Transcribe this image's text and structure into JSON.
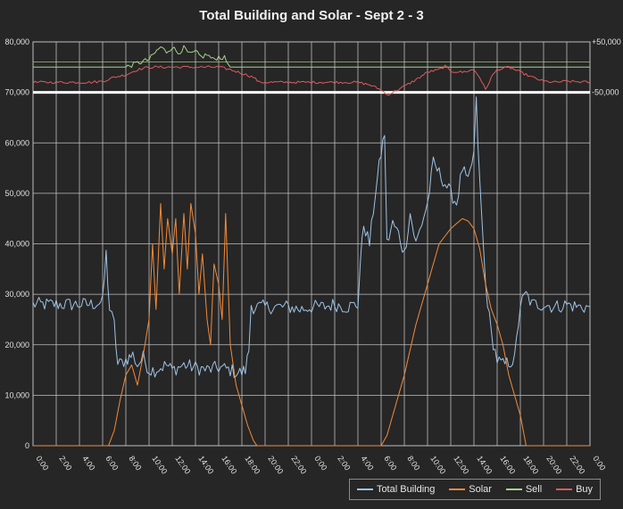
{
  "chart_data": {
    "type": "line",
    "title": "Total Building and Solar - Sept 2 - 3",
    "x_tick_labels": [
      "0:00",
      "2:00",
      "4:00",
      "6:00",
      "8:00",
      "10:00",
      "12:00",
      "14:00",
      "16:00",
      "18:00",
      "20:00",
      "22:00",
      "0:00",
      "2:00",
      "4:00",
      "6:00",
      "8:00",
      "10:00",
      "12:00",
      "14:00",
      "16:00",
      "18:00",
      "20:00",
      "22:00",
      "0:00"
    ],
    "x_range_hours": [
      0,
      48
    ],
    "y_left": {
      "range": [
        0,
        80000
      ],
      "ticks": [
        "0",
        "10,000",
        "20,000",
        "30,000",
        "40,000",
        "50,000",
        "60,000",
        "70,000",
        "80,000"
      ]
    },
    "y_right": {
      "range": [
        -50000,
        50000
      ],
      "ticks": [
        "-50,000",
        "+50,000"
      ],
      "inset_band_left_range": [
        70000,
        80000
      ]
    },
    "colors": {
      "building": "#9ec3e6",
      "solar": "#f28b3a",
      "sell": "#a5d28a",
      "buy": "#e05a5a",
      "zero_line": "#ffffff",
      "grid": "#bfbfbf"
    },
    "series": [
      {
        "name": "Total Building",
        "color": "#9ec3e6",
        "points": [
          [
            0,
            28000
          ],
          [
            1,
            28000
          ],
          [
            2,
            28000
          ],
          [
            3,
            28000
          ],
          [
            4,
            28000
          ],
          [
            5,
            28000
          ],
          [
            6,
            28500
          ],
          [
            6.3,
            38000
          ],
          [
            6.6,
            27000
          ],
          [
            7,
            24000
          ],
          [
            7.3,
            16000
          ],
          [
            8,
            17000
          ],
          [
            8.6,
            18000
          ],
          [
            9,
            16000
          ],
          [
            9.5,
            17500
          ],
          [
            10,
            15000
          ],
          [
            10.5,
            15000
          ],
          [
            11,
            15500
          ],
          [
            11.5,
            16000
          ],
          [
            12,
            15000
          ],
          [
            12.5,
            15500
          ],
          [
            13,
            16000
          ],
          [
            14,
            15500
          ],
          [
            15,
            15000
          ],
          [
            16,
            15500
          ],
          [
            17,
            15000
          ],
          [
            17.5,
            14500
          ],
          [
            18,
            14500
          ],
          [
            18.3,
            15000
          ],
          [
            18.6,
            19000
          ],
          [
            18.8,
            28000
          ],
          [
            19,
            27500
          ],
          [
            20,
            27500
          ],
          [
            21,
            27500
          ],
          [
            22,
            27500
          ],
          [
            23,
            27000
          ],
          [
            24,
            27500
          ],
          [
            25,
            27500
          ],
          [
            26,
            28000
          ],
          [
            27,
            27500
          ],
          [
            28,
            28000
          ],
          [
            28.2,
            36000
          ],
          [
            28.5,
            44000
          ],
          [
            29,
            40000
          ],
          [
            29.5,
            50000
          ],
          [
            30,
            58000
          ],
          [
            30.3,
            62000
          ],
          [
            30.5,
            40000
          ],
          [
            31,
            44000
          ],
          [
            31.5,
            42000
          ],
          [
            32,
            38000
          ],
          [
            32.5,
            46000
          ],
          [
            33,
            40000
          ],
          [
            33.5,
            44000
          ],
          [
            34,
            48000
          ],
          [
            34.5,
            56000
          ],
          [
            35,
            54000
          ],
          [
            35.5,
            52000
          ],
          [
            36,
            50000
          ],
          [
            36.5,
            48000
          ],
          [
            37,
            55000
          ],
          [
            37.5,
            52000
          ],
          [
            38,
            58000
          ],
          [
            38.2,
            68000
          ],
          [
            38.5,
            52000
          ],
          [
            39,
            32000
          ],
          [
            39.5,
            22000
          ],
          [
            40,
            17000
          ],
          [
            40.5,
            16000
          ],
          [
            41,
            16500
          ],
          [
            41.5,
            17000
          ],
          [
            42,
            28000
          ],
          [
            42.5,
            30000
          ],
          [
            43,
            28000
          ],
          [
            44,
            28000
          ],
          [
            45,
            27500
          ],
          [
            46,
            28000
          ],
          [
            47,
            27500
          ],
          [
            48,
            27500
          ]
        ]
      },
      {
        "name": "Solar",
        "color": "#f28b3a",
        "points": [
          [
            0,
            0
          ],
          [
            6.5,
            0
          ],
          [
            7,
            3000
          ],
          [
            7.5,
            9000
          ],
          [
            8,
            14000
          ],
          [
            8.5,
            16000
          ],
          [
            9,
            12000
          ],
          [
            9.5,
            18000
          ],
          [
            10,
            25000
          ],
          [
            10.3,
            40000
          ],
          [
            10.6,
            27000
          ],
          [
            11,
            48000
          ],
          [
            11.3,
            35000
          ],
          [
            11.6,
            45000
          ],
          [
            12,
            38000
          ],
          [
            12.3,
            45000
          ],
          [
            12.6,
            30000
          ],
          [
            13,
            46000
          ],
          [
            13.3,
            35000
          ],
          [
            13.6,
            48000
          ],
          [
            14,
            42000
          ],
          [
            14.3,
            30000
          ],
          [
            14.6,
            38000
          ],
          [
            15,
            25000
          ],
          [
            15.3,
            20000
          ],
          [
            15.6,
            36000
          ],
          [
            16,
            32000
          ],
          [
            16.3,
            25000
          ],
          [
            16.6,
            46000
          ],
          [
            17,
            20000
          ],
          [
            17.5,
            12000
          ],
          [
            18,
            8000
          ],
          [
            18.5,
            4000
          ],
          [
            19,
            1000
          ],
          [
            19.3,
            0
          ],
          [
            30,
            0
          ],
          [
            30.5,
            2000
          ],
          [
            31,
            6000
          ],
          [
            32,
            14000
          ],
          [
            33,
            24000
          ],
          [
            34,
            32000
          ],
          [
            35,
            40000
          ],
          [
            36,
            43000
          ],
          [
            37,
            45000
          ],
          [
            37.5,
            44500
          ],
          [
            38,
            43000
          ],
          [
            38.5,
            39000
          ],
          [
            39,
            32000
          ],
          [
            39.5,
            27000
          ],
          [
            40,
            24000
          ],
          [
            40.5,
            20000
          ],
          [
            41,
            14000
          ],
          [
            42,
            6000
          ],
          [
            42.5,
            0
          ],
          [
            48,
            0
          ]
        ]
      },
      {
        "name": "Sell",
        "color": "#a5d28a",
        "points": [
          [
            0,
            75000
          ],
          [
            8,
            75000
          ],
          [
            9,
            75800
          ],
          [
            10,
            76500
          ],
          [
            10.5,
            77800
          ],
          [
            11,
            79000
          ],
          [
            11.5,
            78000
          ],
          [
            12,
            79000
          ],
          [
            12.5,
            77800
          ],
          [
            13,
            78800
          ],
          [
            13.5,
            77500
          ],
          [
            14,
            78000
          ],
          [
            14.5,
            77000
          ],
          [
            15,
            77500
          ],
          [
            15.5,
            76500
          ],
          [
            16,
            77000
          ],
          [
            16.5,
            76800
          ],
          [
            17,
            75000
          ],
          [
            48,
            75000
          ]
        ]
      },
      {
        "name": "Buy",
        "color": "#e05a5a",
        "points": [
          [
            0,
            72000
          ],
          [
            5,
            72000
          ],
          [
            6,
            72200
          ],
          [
            7,
            73000
          ],
          [
            8,
            73500
          ],
          [
            9,
            74500
          ],
          [
            10,
            75000
          ],
          [
            11,
            75000
          ],
          [
            12,
            75000
          ],
          [
            13,
            75000
          ],
          [
            14,
            75000
          ],
          [
            15,
            75000
          ],
          [
            16,
            75000
          ],
          [
            17,
            74500
          ],
          [
            18,
            73800
          ],
          [
            19,
            73000
          ],
          [
            19.5,
            72000
          ],
          [
            20,
            72000
          ],
          [
            22,
            72000
          ],
          [
            24,
            72000
          ],
          [
            26,
            72000
          ],
          [
            28,
            72000
          ],
          [
            29,
            71500
          ],
          [
            30,
            70500
          ],
          [
            30.5,
            69500
          ],
          [
            31,
            70000
          ],
          [
            32,
            71200
          ],
          [
            33,
            72500
          ],
          [
            34,
            74000
          ],
          [
            35,
            74500
          ],
          [
            35.5,
            75200
          ],
          [
            36,
            74200
          ],
          [
            37,
            74000
          ],
          [
            38,
            74500
          ],
          [
            38.5,
            73000
          ],
          [
            39,
            70500
          ],
          [
            39.5,
            73000
          ],
          [
            40,
            74500
          ],
          [
            41,
            75000
          ],
          [
            42,
            74000
          ],
          [
            43,
            73000
          ],
          [
            44,
            72200
          ],
          [
            45,
            72000
          ],
          [
            46,
            72200
          ],
          [
            48,
            72000
          ]
        ]
      }
    ],
    "legend": [
      "Total Building",
      "Solar",
      "Sell",
      "Buy"
    ],
    "legend_position": "bottom-right"
  }
}
